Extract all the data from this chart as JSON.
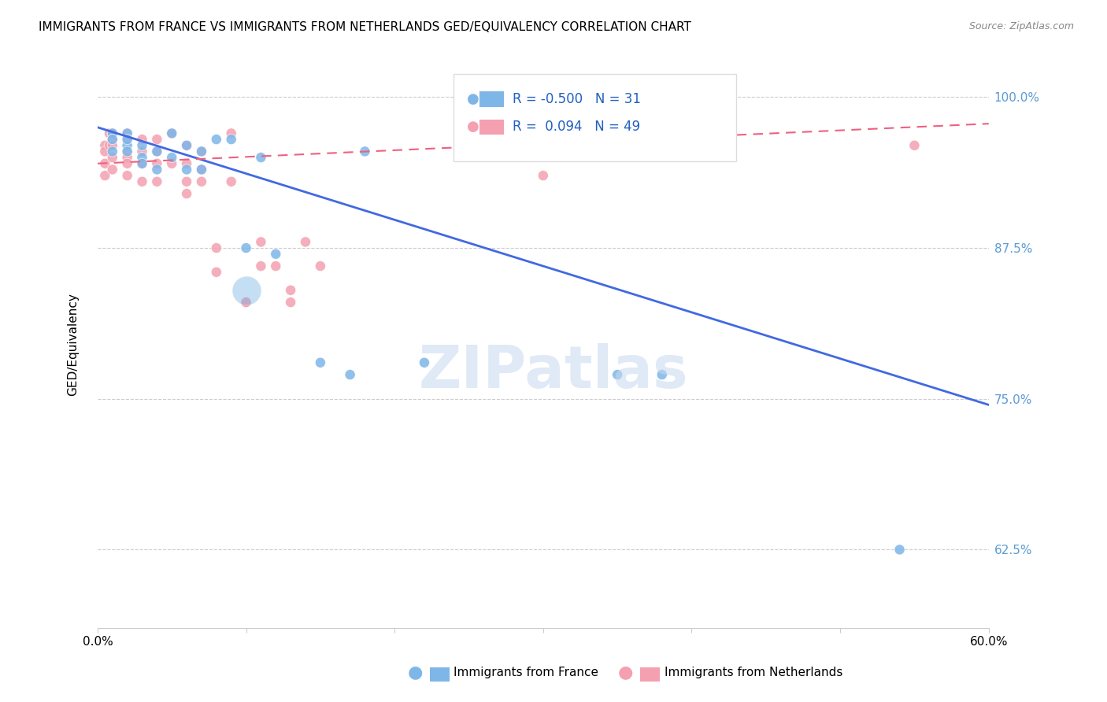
{
  "title": "IMMIGRANTS FROM FRANCE VS IMMIGRANTS FROM NETHERLANDS GED/EQUIVALENCY CORRELATION CHART",
  "source": "Source: ZipAtlas.com",
  "ylabel": "GED/Equivalency",
  "ytick_labels": [
    "62.5%",
    "75.0%",
    "87.5%",
    "100.0%"
  ],
  "ytick_values": [
    0.625,
    0.75,
    0.875,
    1.0
  ],
  "xmin": 0.0,
  "xmax": 0.6,
  "ymin": 0.56,
  "ymax": 1.03,
  "legend_france": "Immigrants from France",
  "legend_netherlands": "Immigrants from Netherlands",
  "R_france": -0.5,
  "N_france": 31,
  "R_netherlands": 0.094,
  "N_netherlands": 49,
  "france_color": "#7EB6E8",
  "netherlands_color": "#F4A0B0",
  "france_line_color": "#4169E1",
  "netherlands_line_color": "#F06080",
  "watermark_color": "#C8D8F0",
  "france_points_x": [
    0.01,
    0.01,
    0.01,
    0.02,
    0.02,
    0.02,
    0.02,
    0.03,
    0.03,
    0.03,
    0.04,
    0.04,
    0.05,
    0.05,
    0.06,
    0.06,
    0.07,
    0.07,
    0.08,
    0.09,
    0.1,
    0.11,
    0.12,
    0.15,
    0.17,
    0.18,
    0.22,
    0.35,
    0.38,
    0.54
  ],
  "france_points_y": [
    0.97,
    0.965,
    0.955,
    0.97,
    0.96,
    0.965,
    0.955,
    0.96,
    0.95,
    0.945,
    0.955,
    0.94,
    0.97,
    0.95,
    0.96,
    0.94,
    0.955,
    0.94,
    0.965,
    0.965,
    0.875,
    0.95,
    0.87,
    0.78,
    0.77,
    0.955,
    0.78,
    0.77,
    0.77,
    0.625
  ],
  "france_sizes": [
    90,
    90,
    90,
    90,
    90,
    90,
    90,
    90,
    90,
    90,
    90,
    90,
    90,
    90,
    90,
    90,
    90,
    90,
    90,
    90,
    90,
    90,
    90,
    90,
    90,
    90,
    90,
    90,
    90,
    90
  ],
  "france_large_x": [
    0.1
  ],
  "france_large_y": [
    0.84
  ],
  "france_large_size": [
    700
  ],
  "netherlands_points_x": [
    0.005,
    0.005,
    0.005,
    0.005,
    0.008,
    0.008,
    0.01,
    0.01,
    0.01,
    0.01,
    0.01,
    0.02,
    0.02,
    0.02,
    0.02,
    0.02,
    0.02,
    0.03,
    0.03,
    0.03,
    0.03,
    0.04,
    0.04,
    0.04,
    0.04,
    0.05,
    0.05,
    0.06,
    0.06,
    0.06,
    0.06,
    0.07,
    0.07,
    0.07,
    0.08,
    0.08,
    0.09,
    0.09,
    0.1,
    0.1,
    0.11,
    0.11,
    0.12,
    0.13,
    0.13,
    0.14,
    0.15,
    0.3,
    0.55
  ],
  "netherlands_points_y": [
    0.96,
    0.955,
    0.945,
    0.935,
    0.97,
    0.96,
    0.97,
    0.965,
    0.96,
    0.95,
    0.94,
    0.97,
    0.965,
    0.955,
    0.95,
    0.945,
    0.935,
    0.965,
    0.955,
    0.945,
    0.93,
    0.965,
    0.955,
    0.945,
    0.93,
    0.97,
    0.945,
    0.96,
    0.945,
    0.93,
    0.92,
    0.955,
    0.94,
    0.93,
    0.875,
    0.855,
    0.97,
    0.93,
    0.83,
    0.83,
    0.88,
    0.86,
    0.86,
    0.84,
    0.83,
    0.88,
    0.86,
    0.935,
    0.96
  ],
  "netherlands_sizes": [
    90,
    90,
    90,
    90,
    90,
    90,
    90,
    90,
    90,
    90,
    90,
    90,
    90,
    90,
    90,
    90,
    90,
    90,
    90,
    90,
    90,
    90,
    90,
    90,
    90,
    90,
    90,
    90,
    90,
    90,
    90,
    90,
    90,
    90,
    90,
    90,
    90,
    90,
    90,
    90,
    90,
    90,
    90,
    90,
    90,
    90,
    90,
    90,
    90
  ],
  "france_trend_x": [
    0.0,
    0.6
  ],
  "france_trend_y": [
    0.975,
    0.745
  ],
  "netherlands_trend_x": [
    0.0,
    0.6
  ],
  "netherlands_trend_y": [
    0.945,
    0.978
  ],
  "xticks": [
    0.0,
    0.1,
    0.2,
    0.3,
    0.4,
    0.5,
    0.6
  ],
  "xticklabels": [
    "0.0%",
    "",
    "",
    "",
    "",
    "",
    "60.0%"
  ]
}
